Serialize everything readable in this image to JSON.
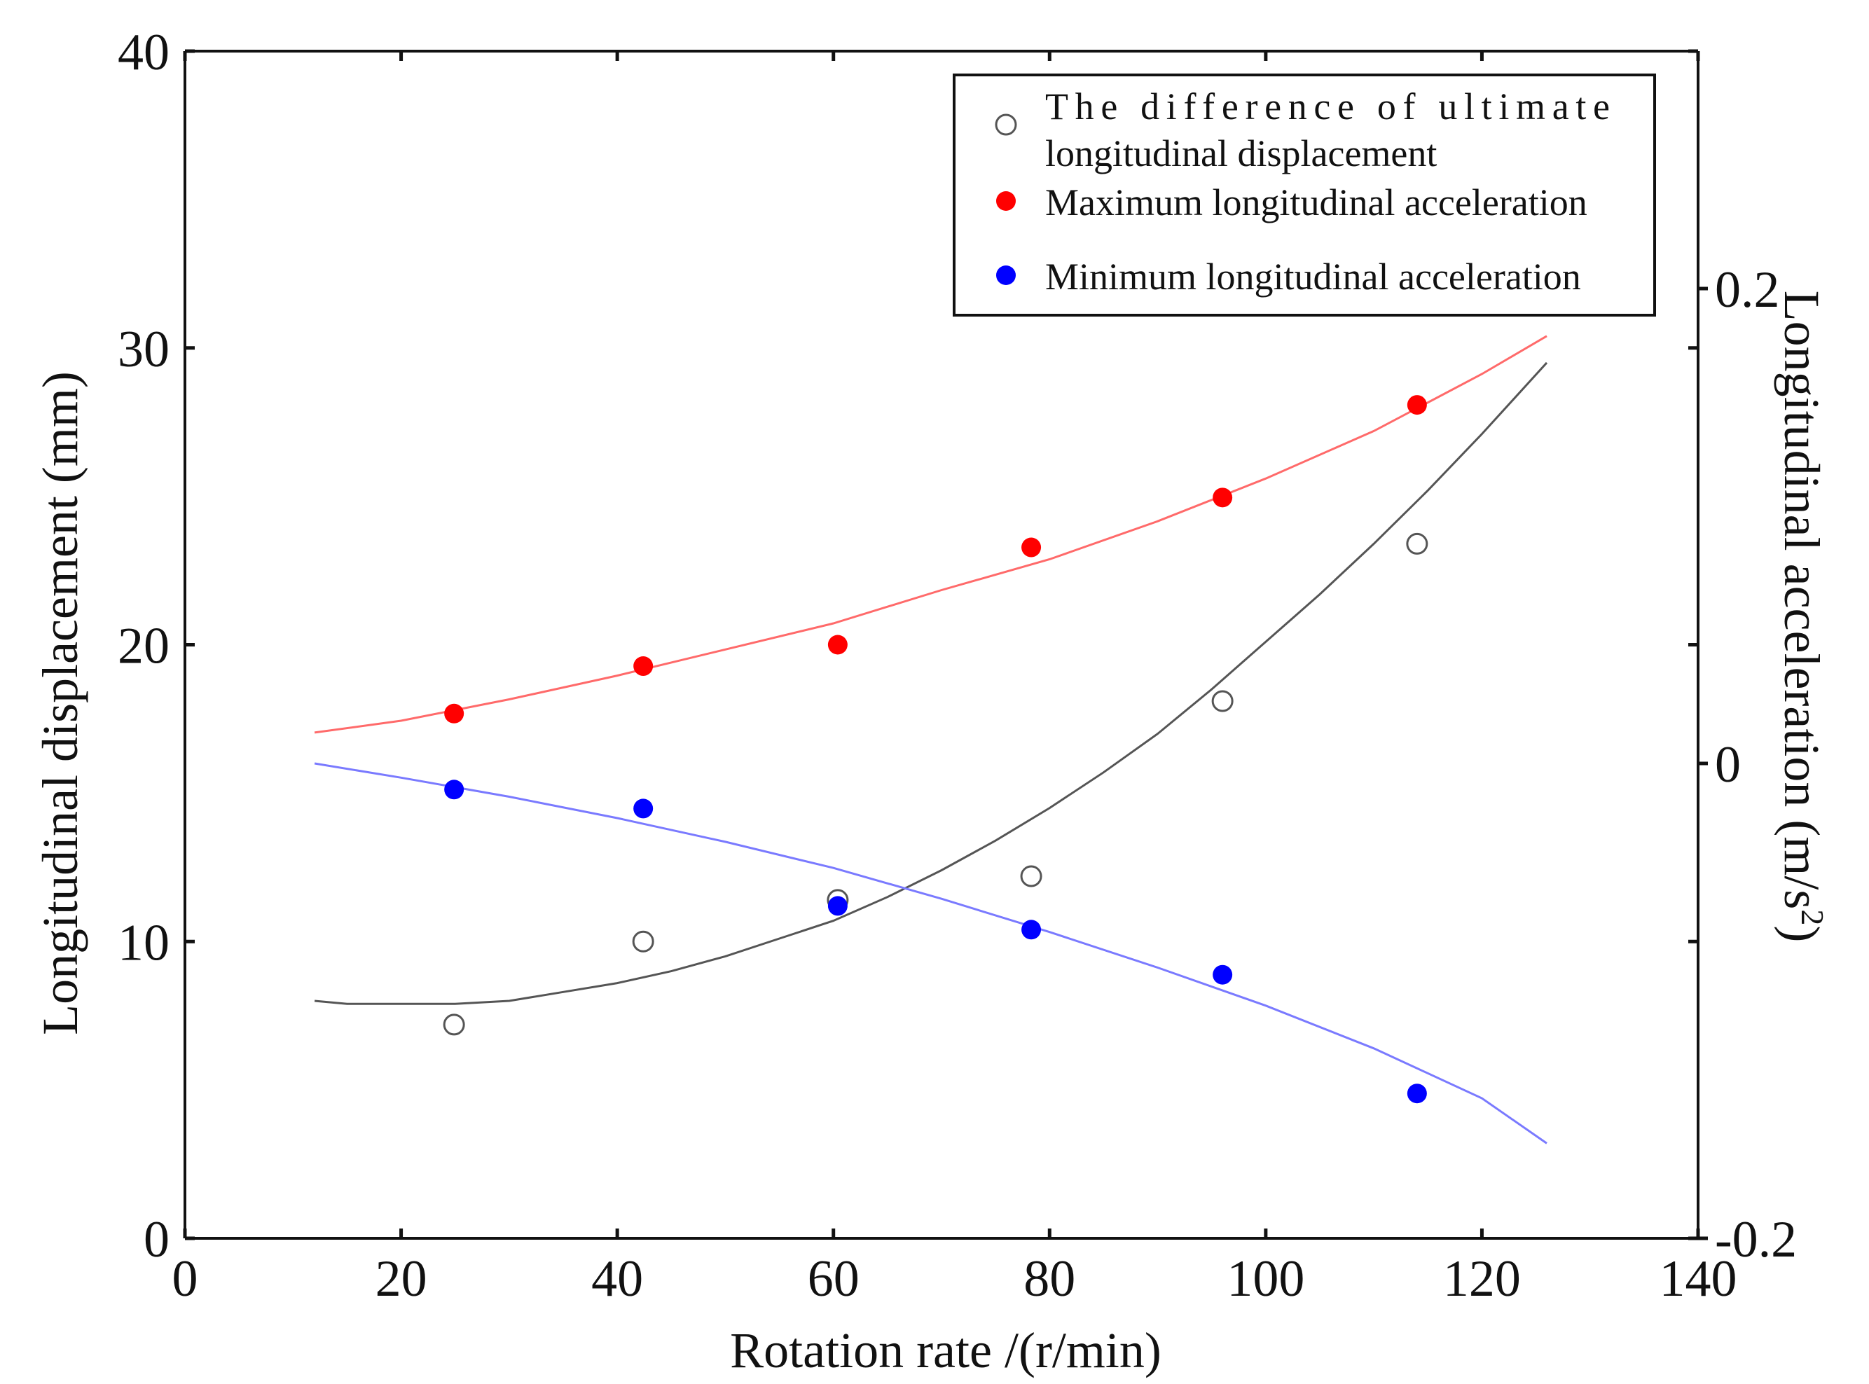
{
  "chart_data": {
    "type": "scatter",
    "xlabel": "Rotation rate /(r/min)",
    "ylabel_left": "Longitudinal displacement (mm)",
    "ylabel_right": "Longitudinal acceleration (m/s",
    "ylabel_right_sup": "2",
    "ylabel_right_close": ")",
    "xlim": [
      0,
      140
    ],
    "ylim_left": [
      0,
      40
    ],
    "ylim_right": [
      -0.2,
      0.3
    ],
    "x_ticks": [
      "0",
      "20",
      "40",
      "60",
      "80",
      "100",
      "120",
      "140"
    ],
    "x_tick_values": [
      0,
      20,
      40,
      60,
      80,
      100,
      120,
      140
    ],
    "y_left_ticks": [
      "0",
      "10",
      "20",
      "30",
      "40"
    ],
    "y_left_tick_values": [
      0,
      10,
      20,
      30,
      40
    ],
    "y_right_ticks": [
      "-0.2",
      "0",
      "0.2"
    ],
    "y_right_tick_values": [
      -0.2,
      0,
      0.2
    ],
    "series": [
      {
        "name": "The difference of ultimate longitudinal displacement",
        "legend_line1": "The difference of ultimate",
        "legend_line2": "longitudinal displacement",
        "axis": "left",
        "marker": "open-circle",
        "color": "#555555",
        "x": [
          24.9,
          42.4,
          60.4,
          78.3,
          96.0,
          114.0
        ],
        "y": [
          7.2,
          10.0,
          11.4,
          12.2,
          18.1,
          23.4
        ],
        "fit_x": [
          12,
          15,
          20,
          25,
          30,
          35,
          40,
          45,
          50,
          55,
          60,
          65,
          70,
          75,
          80,
          85,
          90,
          95,
          100,
          105,
          110,
          115,
          120,
          126
        ],
        "fit_y": [
          8.0,
          7.9,
          7.9,
          7.9,
          8.0,
          8.3,
          8.6,
          9.0,
          9.5,
          10.1,
          10.7,
          11.5,
          12.4,
          13.4,
          14.5,
          15.7,
          17.0,
          18.5,
          20.1,
          21.7,
          23.4,
          25.2,
          27.1,
          29.5
        ]
      },
      {
        "name": "Maximum longitudinal acceleration",
        "axis": "right",
        "marker": "filled-circle",
        "color": "#ff0000",
        "x": [
          24.9,
          42.4,
          60.4,
          78.3,
          96.0,
          114.0
        ],
        "y": [
          0.021,
          0.041,
          0.05,
          0.091,
          0.112,
          0.151
        ],
        "fit_x": [
          12,
          20,
          30,
          40,
          50,
          60,
          70,
          80,
          90,
          100,
          110,
          120,
          126
        ],
        "fit_y": [
          0.013,
          0.018,
          0.027,
          0.037,
          0.048,
          0.059,
          0.073,
          0.086,
          0.102,
          0.12,
          0.14,
          0.164,
          0.18
        ]
      },
      {
        "name": "Minimum longitudinal acceleration",
        "axis": "right",
        "marker": "filled-circle",
        "color": "#0000ff",
        "x": [
          24.9,
          42.4,
          60.4,
          78.3,
          96.0,
          114.0
        ],
        "y": [
          -0.011,
          -0.019,
          -0.06,
          -0.07,
          -0.089,
          -0.139
        ],
        "fit_x": [
          12,
          20,
          30,
          40,
          50,
          60,
          70,
          80,
          90,
          100,
          110,
          120,
          126
        ],
        "fit_y": [
          0.0,
          -0.006,
          -0.014,
          -0.023,
          -0.033,
          -0.044,
          -0.057,
          -0.071,
          -0.086,
          -0.102,
          -0.12,
          -0.141,
          -0.16
        ]
      }
    ],
    "legend_position": "top-right",
    "grid": false
  }
}
